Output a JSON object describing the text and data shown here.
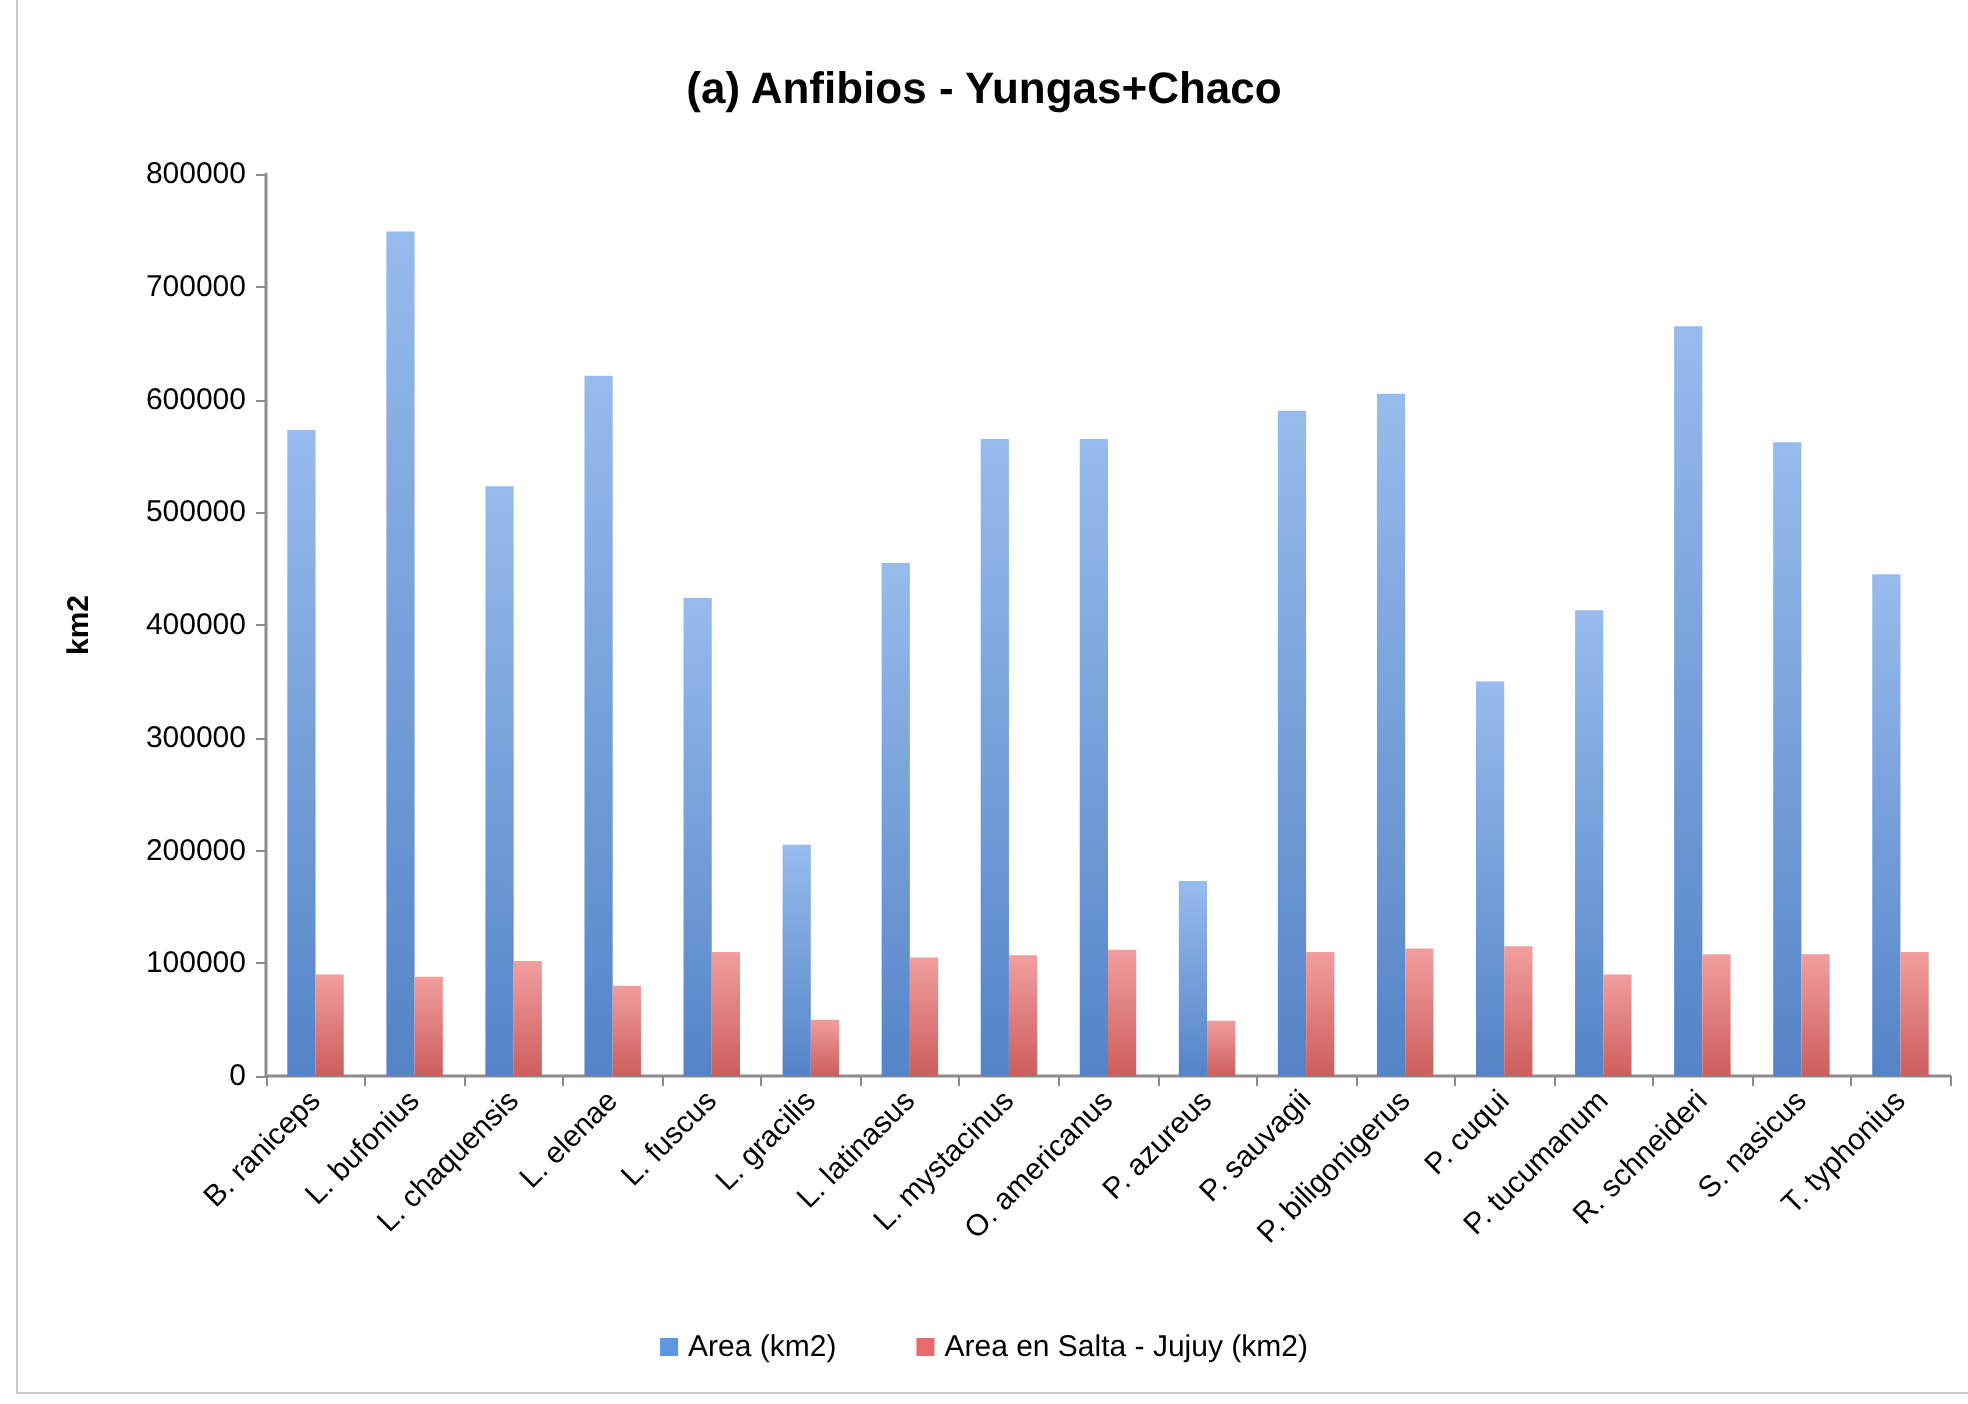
{
  "chart_data": {
    "type": "bar",
    "title": "(a) Anfibios - Yungas+Chaco",
    "ylabel": "km2",
    "categories": [
      "B. raniceps",
      "L. bufonius",
      "L. chaquensis",
      "L. elenae",
      "L. fuscus",
      "L. gracilis",
      "L. latinasus",
      "L. mystacinus",
      "O. americanus",
      "P. azureus",
      "P. sauvagii",
      "P. biligonigerus",
      "P. cuqui",
      "P. tucumanum",
      "R. schneideri",
      "S. nasicus",
      "T. typhonius"
    ],
    "series": [
      {
        "name": "Area (km2)",
        "color": "#5f96e2",
        "values": [
          573000,
          749000,
          523000,
          621000,
          424000,
          205000,
          455000,
          565000,
          565000,
          173000,
          590000,
          605000,
          350000,
          413000,
          665000,
          562000,
          445000
        ]
      },
      {
        "name": "Area en Salta - Jujuy (km2)",
        "color": "#e96a6a",
        "values": [
          90000,
          88000,
          102000,
          80000,
          110000,
          50000,
          105000,
          107000,
          112000,
          49000,
          110000,
          113000,
          115000,
          90000,
          108000,
          108000,
          110000
        ]
      }
    ],
    "ylim": [
      0,
      800000
    ],
    "yticks": [
      0,
      100000,
      200000,
      300000,
      400000,
      500000,
      600000,
      700000,
      800000
    ],
    "legend": "bottom"
  }
}
